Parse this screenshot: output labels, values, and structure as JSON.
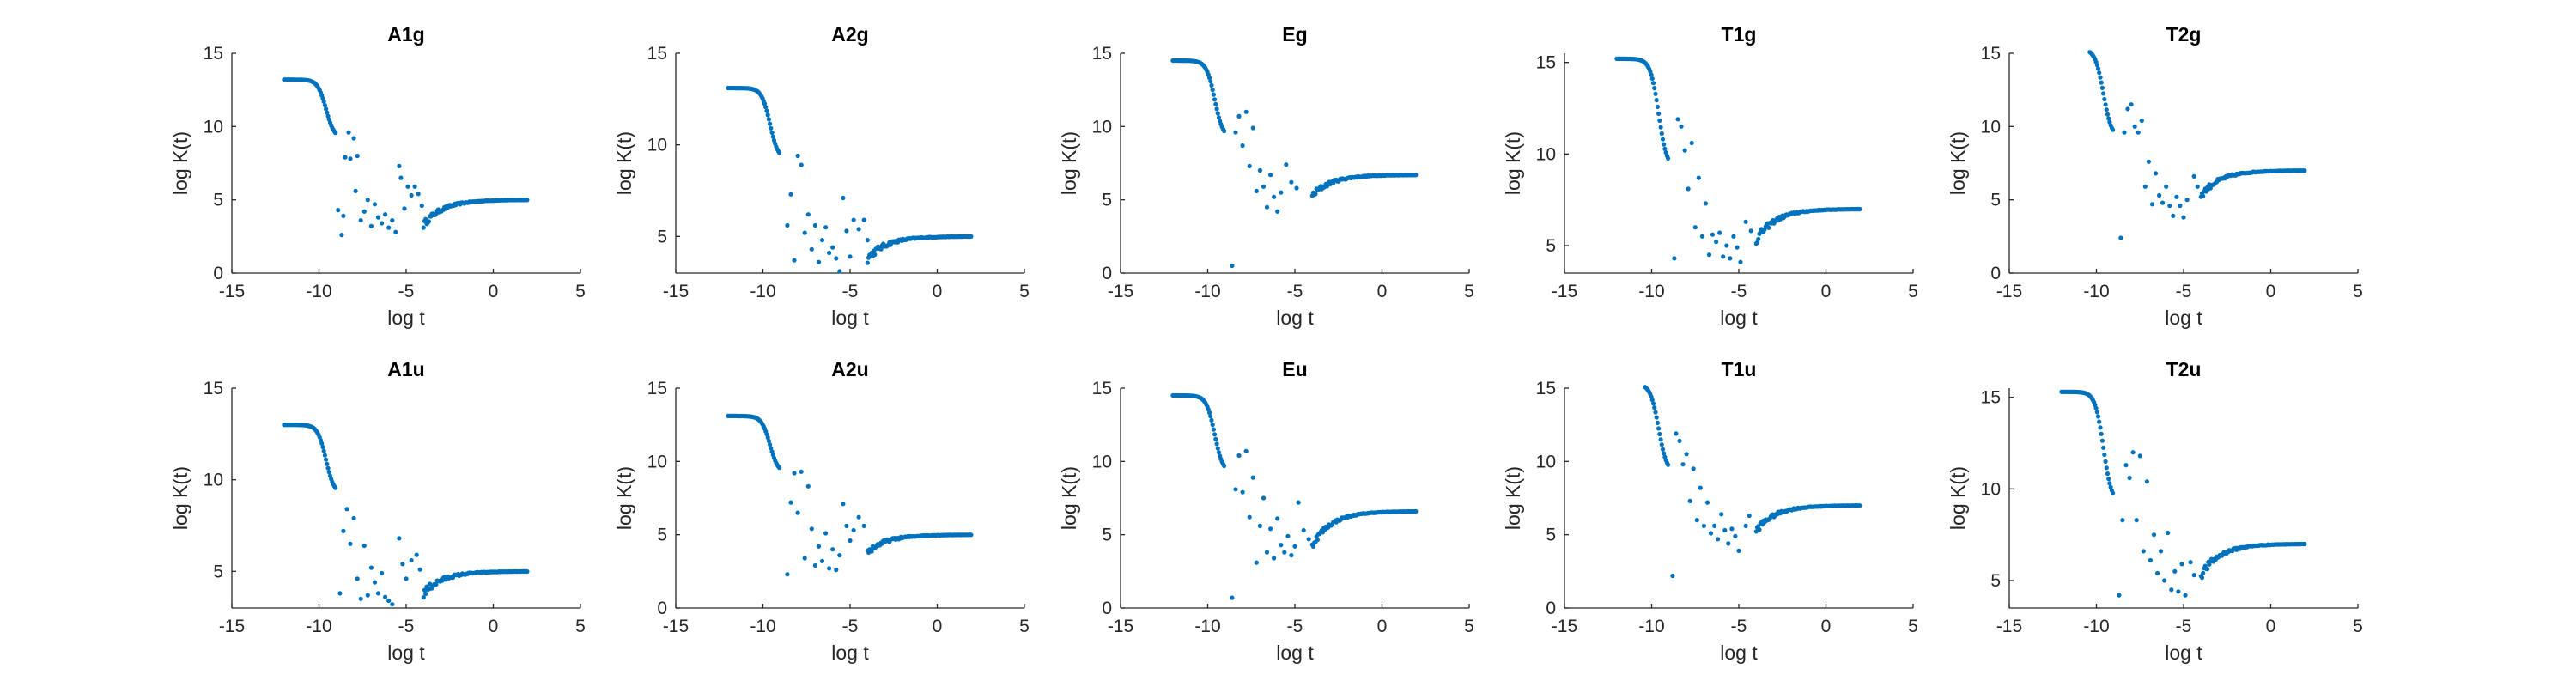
{
  "figure": {
    "background": "#ffffff",
    "marker_color": "#0072BD",
    "axis_color": "#262626"
  },
  "chart_data": [
    {
      "type": "scatter",
      "title": "A1g",
      "xlabel": "log t",
      "ylabel": "log K(t)",
      "xlim": [
        -15,
        5
      ],
      "ylim": [
        0,
        15
      ],
      "xticks": [
        "-15",
        "-10",
        "-5",
        "0",
        "5"
      ],
      "yticks": [
        "0",
        "5",
        "10",
        "15"
      ],
      "profile": {
        "plateau": 13.2,
        "final": 5.0,
        "min": 2.5,
        "overshoot": 0
      },
      "scatter_points": [
        [
          -8.9,
          4.3
        ],
        [
          -8.7,
          2.6
        ],
        [
          -8.6,
          3.9
        ],
        [
          -8.5,
          7.9
        ],
        [
          -8.3,
          9.6
        ],
        [
          -8.2,
          7.8
        ],
        [
          -8.0,
          9.2
        ],
        [
          -7.9,
          5.6
        ],
        [
          -7.8,
          8.0
        ],
        [
          -7.6,
          3.6
        ],
        [
          -7.4,
          4.2
        ],
        [
          -7.2,
          5.0
        ],
        [
          -7.0,
          3.2
        ],
        [
          -6.8,
          4.7
        ],
        [
          -6.6,
          3.8
        ],
        [
          -6.4,
          3.4
        ],
        [
          -6.2,
          4.0
        ],
        [
          -6.0,
          3.1
        ],
        [
          -5.8,
          3.6
        ],
        [
          -5.6,
          2.8
        ],
        [
          -5.4,
          7.3
        ],
        [
          -5.3,
          6.5
        ],
        [
          -5.1,
          4.4
        ],
        [
          -4.9,
          5.9
        ],
        [
          -4.7,
          5.3
        ],
        [
          -4.5,
          5.9
        ],
        [
          -4.3,
          5.4
        ],
        [
          -4.1,
          4.6
        ]
      ]
    },
    {
      "type": "scatter",
      "title": "A2g",
      "xlabel": "log t",
      "ylabel": "log K(t)",
      "xlim": [
        -15,
        5
      ],
      "ylim": [
        3,
        15
      ],
      "xticks": [
        "-15",
        "-10",
        "-5",
        "0",
        "5"
      ],
      "yticks": [
        "5",
        "10",
        "15"
      ],
      "profile": {
        "plateau": 13.1,
        "final": 5.0,
        "min": 3.0,
        "overshoot": 0
      },
      "scatter_points": [
        [
          -8.6,
          5.6
        ],
        [
          -8.4,
          7.3
        ],
        [
          -8.2,
          3.7
        ],
        [
          -8.0,
          9.4
        ],
        [
          -7.8,
          8.9
        ],
        [
          -7.6,
          5.2
        ],
        [
          -7.4,
          6.2
        ],
        [
          -7.2,
          4.3
        ],
        [
          -7.0,
          5.6
        ],
        [
          -6.8,
          3.6
        ],
        [
          -6.6,
          4.8
        ],
        [
          -6.4,
          5.5
        ],
        [
          -6.2,
          4.1
        ],
        [
          -6.0,
          4.4
        ],
        [
          -5.8,
          3.8
        ],
        [
          -5.6,
          3.1
        ],
        [
          -5.4,
          7.1
        ],
        [
          -5.2,
          5.3
        ],
        [
          -5.0,
          3.9
        ],
        [
          -4.8,
          5.9
        ],
        [
          -4.5,
          5.4
        ],
        [
          -4.2,
          5.9
        ],
        [
          -4.0,
          4.8
        ]
      ]
    },
    {
      "type": "scatter",
      "title": "Eg",
      "xlabel": "log t",
      "ylabel": "log K(t)",
      "xlim": [
        -15,
        5
      ],
      "ylim": [
        0,
        15
      ],
      "xticks": [
        "-15",
        "-10",
        "-5",
        "0",
        "5"
      ],
      "yticks": [
        "0",
        "5",
        "10",
        "15"
      ],
      "profile": {
        "plateau": 14.5,
        "final": 6.7,
        "min": 4.5,
        "overshoot": 0
      },
      "scatter_points": [
        [
          -8.6,
          0.5
        ],
        [
          -8.4,
          9.6
        ],
        [
          -8.2,
          10.7
        ],
        [
          -8.0,
          8.7
        ],
        [
          -7.8,
          11.0
        ],
        [
          -7.6,
          7.3
        ],
        [
          -7.4,
          9.9
        ],
        [
          -7.2,
          5.6
        ],
        [
          -7.0,
          7.0
        ],
        [
          -6.8,
          5.9
        ],
        [
          -6.6,
          4.5
        ],
        [
          -6.4,
          6.7
        ],
        [
          -6.2,
          5.2
        ],
        [
          -6.0,
          4.2
        ],
        [
          -5.8,
          5.5
        ],
        [
          -5.5,
          7.4
        ],
        [
          -5.2,
          6.2
        ],
        [
          -4.9,
          5.8
        ]
      ]
    },
    {
      "type": "scatter",
      "title": "T1g",
      "xlabel": "log t",
      "ylabel": "log K(t)",
      "xlim": [
        -15,
        5
      ],
      "ylim": [
        3.5,
        15.5
      ],
      "xticks": [
        "-15",
        "-10",
        "-5",
        "0",
        "5"
      ],
      "yticks": [
        "5",
        "10",
        "15"
      ],
      "profile": {
        "plateau": 15.2,
        "final": 7.0,
        "min": 4.5,
        "overshoot": 0
      },
      "scatter_points": [
        [
          -8.7,
          4.3
        ],
        [
          -8.5,
          11.9
        ],
        [
          -8.3,
          11.5
        ],
        [
          -8.1,
          10.2
        ],
        [
          -7.9,
          8.1
        ],
        [
          -7.7,
          10.6
        ],
        [
          -7.5,
          6.0
        ],
        [
          -7.3,
          8.7
        ],
        [
          -7.1,
          5.5
        ],
        [
          -6.9,
          7.3
        ],
        [
          -6.7,
          4.5
        ],
        [
          -6.5,
          5.6
        ],
        [
          -6.3,
          5.2
        ],
        [
          -6.1,
          5.7
        ],
        [
          -5.9,
          4.4
        ],
        [
          -5.7,
          5.0
        ],
        [
          -5.5,
          4.3
        ],
        [
          -5.3,
          5.5
        ],
        [
          -5.1,
          4.9
        ],
        [
          -4.9,
          4.1
        ],
        [
          -4.6,
          6.3
        ],
        [
          -4.3,
          5.8
        ]
      ]
    },
    {
      "type": "scatter",
      "title": "T2g",
      "xlabel": "log t",
      "ylabel": "log K(t)",
      "xlim": [
        -15,
        5
      ],
      "ylim": [
        0,
        15
      ],
      "xticks": [
        "-15",
        "-10",
        "-5",
        "0",
        "5"
      ],
      "yticks": [
        "0",
        "5",
        "10",
        "15"
      ],
      "profile": {
        "plateau": 15.3,
        "final": 7.0,
        "min": 4.5,
        "overshoot": 0
      },
      "scatter_points": [
        [
          -8.6,
          2.4
        ],
        [
          -8.4,
          9.6
        ],
        [
          -8.2,
          11.2
        ],
        [
          -8.0,
          11.5
        ],
        [
          -7.8,
          10.0
        ],
        [
          -7.6,
          9.6
        ],
        [
          -7.4,
          10.4
        ],
        [
          -7.2,
          5.9
        ],
        [
          -7.0,
          7.6
        ],
        [
          -6.8,
          4.7
        ],
        [
          -6.6,
          6.8
        ],
        [
          -6.4,
          5.3
        ],
        [
          -6.2,
          4.8
        ],
        [
          -6.0,
          5.9
        ],
        [
          -5.8,
          4.6
        ],
        [
          -5.6,
          3.9
        ],
        [
          -5.4,
          5.2
        ],
        [
          -5.2,
          4.6
        ],
        [
          -5.0,
          3.8
        ],
        [
          -4.8,
          5.0
        ],
        [
          -4.4,
          6.6
        ],
        [
          -4.2,
          5.9
        ]
      ]
    },
    {
      "type": "scatter",
      "title": "A1u",
      "xlabel": "log t",
      "ylabel": "log K(t)",
      "xlim": [
        -15,
        5
      ],
      "ylim": [
        3,
        15
      ],
      "xticks": [
        "-15",
        "-10",
        "-5",
        "0",
        "5"
      ],
      "yticks": [
        "5",
        "10",
        "15"
      ],
      "profile": {
        "plateau": 13.0,
        "final": 5.0,
        "min": 3.0,
        "overshoot": 0
      },
      "scatter_points": [
        [
          -8.8,
          3.8
        ],
        [
          -8.6,
          7.2
        ],
        [
          -8.4,
          8.4
        ],
        [
          -8.2,
          6.5
        ],
        [
          -8.0,
          7.9
        ],
        [
          -7.8,
          4.6
        ],
        [
          -7.6,
          3.5
        ],
        [
          -7.4,
          6.4
        ],
        [
          -7.2,
          3.7
        ],
        [
          -7.0,
          5.2
        ],
        [
          -6.8,
          4.4
        ],
        [
          -6.6,
          3.8
        ],
        [
          -6.4,
          4.9
        ],
        [
          -6.2,
          3.6
        ],
        [
          -6.0,
          3.4
        ],
        [
          -5.8,
          3.2
        ],
        [
          -5.6,
          2.9
        ],
        [
          -5.4,
          6.8
        ],
        [
          -5.2,
          5.4
        ],
        [
          -5.0,
          4.6
        ],
        [
          -4.7,
          5.6
        ],
        [
          -4.4,
          5.9
        ],
        [
          -4.2,
          5.1
        ]
      ]
    },
    {
      "type": "scatter",
      "title": "A2u",
      "xlabel": "log t",
      "ylabel": "log K(t)",
      "xlim": [
        -15,
        5
      ],
      "ylim": [
        0,
        15
      ],
      "xticks": [
        "-15",
        "-10",
        "-5",
        "0",
        "5"
      ],
      "yticks": [
        "0",
        "5",
        "10",
        "15"
      ],
      "profile": {
        "plateau": 13.1,
        "final": 5.0,
        "min": 3.0,
        "overshoot": 0
      },
      "scatter_points": [
        [
          -8.6,
          2.3
        ],
        [
          -8.4,
          7.2
        ],
        [
          -8.2,
          9.2
        ],
        [
          -8.0,
          6.5
        ],
        [
          -7.8,
          9.3
        ],
        [
          -7.6,
          3.4
        ],
        [
          -7.4,
          8.3
        ],
        [
          -7.2,
          5.4
        ],
        [
          -7.0,
          2.9
        ],
        [
          -6.8,
          4.2
        ],
        [
          -6.6,
          3.2
        ],
        [
          -6.4,
          5.1
        ],
        [
          -6.2,
          2.7
        ],
        [
          -6.0,
          4.0
        ],
        [
          -5.8,
          2.6
        ],
        [
          -5.6,
          3.6
        ],
        [
          -5.4,
          7.1
        ],
        [
          -5.2,
          5.6
        ],
        [
          -5.0,
          4.6
        ],
        [
          -4.8,
          5.3
        ],
        [
          -4.5,
          6.2
        ],
        [
          -4.2,
          5.6
        ]
      ]
    },
    {
      "type": "scatter",
      "title": "Eu",
      "xlabel": "log t",
      "ylabel": "log K(t)",
      "xlim": [
        -15,
        5
      ],
      "ylim": [
        0,
        15
      ],
      "xticks": [
        "-15",
        "-10",
        "-5",
        "0",
        "5"
      ],
      "yticks": [
        "0",
        "5",
        "10",
        "15"
      ],
      "profile": {
        "plateau": 14.5,
        "final": 6.6,
        "min": 3.5,
        "overshoot": 0
      },
      "scatter_points": [
        [
          -8.6,
          0.7
        ],
        [
          -8.4,
          8.1
        ],
        [
          -8.2,
          10.4
        ],
        [
          -8.0,
          7.9
        ],
        [
          -7.8,
          10.7
        ],
        [
          -7.6,
          6.2
        ],
        [
          -7.4,
          8.9
        ],
        [
          -7.2,
          3.1
        ],
        [
          -7.0,
          5.6
        ],
        [
          -6.8,
          7.5
        ],
        [
          -6.6,
          3.8
        ],
        [
          -6.4,
          5.4
        ],
        [
          -6.2,
          3.4
        ],
        [
          -6.0,
          6.1
        ],
        [
          -5.8,
          4.3
        ],
        [
          -5.6,
          3.8
        ],
        [
          -5.4,
          4.9
        ],
        [
          -5.2,
          3.6
        ],
        [
          -5.0,
          4.2
        ],
        [
          -4.8,
          7.2
        ],
        [
          -4.5,
          5.3
        ],
        [
          -4.2,
          4.7
        ]
      ]
    },
    {
      "type": "scatter",
      "title": "T1u",
      "xlabel": "log t",
      "ylabel": "log K(t)",
      "xlim": [
        -15,
        5
      ],
      "ylim": [
        0,
        15
      ],
      "xticks": [
        "-15",
        "-10",
        "-5",
        "0",
        "5"
      ],
      "yticks": [
        "0",
        "5",
        "10",
        "15"
      ],
      "profile": {
        "plateau": 15.3,
        "final": 7.0,
        "min": 4.5,
        "overshoot": 0
      },
      "scatter_points": [
        [
          -8.8,
          2.2
        ],
        [
          -8.6,
          11.9
        ],
        [
          -8.4,
          11.4
        ],
        [
          -8.2,
          9.8
        ],
        [
          -8.0,
          10.5
        ],
        [
          -7.8,
          7.3
        ],
        [
          -7.6,
          9.5
        ],
        [
          -7.4,
          6.0
        ],
        [
          -7.2,
          8.2
        ],
        [
          -7.0,
          5.6
        ],
        [
          -6.8,
          7.2
        ],
        [
          -6.6,
          5.1
        ],
        [
          -6.4,
          5.6
        ],
        [
          -6.2,
          4.7
        ],
        [
          -6.0,
          6.4
        ],
        [
          -5.8,
          5.3
        ],
        [
          -5.6,
          4.4
        ],
        [
          -5.4,
          5.4
        ],
        [
          -5.2,
          4.9
        ],
        [
          -5.0,
          3.9
        ],
        [
          -4.6,
          5.6
        ],
        [
          -4.4,
          6.3
        ]
      ]
    },
    {
      "type": "scatter",
      "title": "T2u",
      "xlabel": "log t",
      "ylabel": "log K(t)",
      "xlim": [
        -15,
        5
      ],
      "ylim": [
        3.5,
        15.5
      ],
      "xticks": [
        "-15",
        "-10",
        "-5",
        "0",
        "5"
      ],
      "yticks": [
        "5",
        "10",
        "15"
      ],
      "profile": {
        "plateau": 15.3,
        "final": 7.0,
        "min": 4.5,
        "overshoot": 0
      },
      "scatter_points": [
        [
          -8.7,
          4.2
        ],
        [
          -8.5,
          8.3
        ],
        [
          -8.3,
          11.3
        ],
        [
          -8.1,
          10.6
        ],
        [
          -7.9,
          12.0
        ],
        [
          -7.7,
          8.3
        ],
        [
          -7.5,
          11.8
        ],
        [
          -7.3,
          6.6
        ],
        [
          -7.1,
          10.4
        ],
        [
          -6.9,
          6.1
        ],
        [
          -6.7,
          7.5
        ],
        [
          -6.5,
          5.4
        ],
        [
          -6.3,
          6.6
        ],
        [
          -6.1,
          5.0
        ],
        [
          -5.9,
          7.6
        ],
        [
          -5.7,
          4.5
        ],
        [
          -5.5,
          5.5
        ],
        [
          -5.3,
          4.4
        ],
        [
          -5.1,
          5.9
        ],
        [
          -4.9,
          4.2
        ],
        [
          -4.6,
          6.0
        ],
        [
          -4.4,
          5.3
        ]
      ]
    }
  ]
}
